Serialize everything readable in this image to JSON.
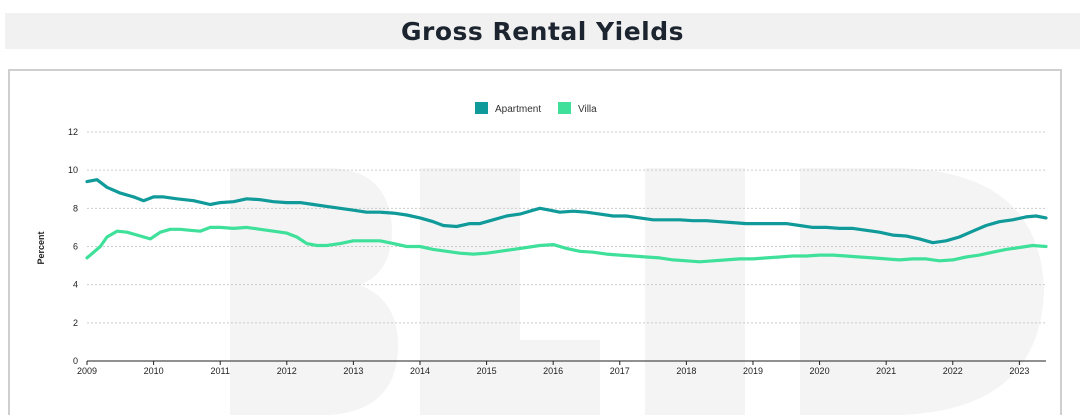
{
  "page": {
    "title": "Gross Rental Yields"
  },
  "colors": {
    "apartment": "#119a9a",
    "villa": "#3fe09a",
    "grid": "#cccccc",
    "axis": "#222222",
    "watermark": "#f4f4f4"
  },
  "chart_data": {
    "type": "line",
    "title": "",
    "xlabel": "",
    "ylabel": "Percent",
    "xlim": [
      2009,
      2023.4
    ],
    "ylim": [
      0,
      12
    ],
    "yticks": [
      0,
      2,
      4,
      6,
      8,
      10,
      12
    ],
    "xticks": [
      2009,
      2010,
      2011,
      2012,
      2013,
      2014,
      2015,
      2016,
      2017,
      2018,
      2019,
      2020,
      2021,
      2022,
      2023
    ],
    "grid": true,
    "legend": "top-center",
    "series": [
      {
        "name": "Apartment",
        "color": "#119a9a",
        "x": [
          2009.0,
          2009.15,
          2009.3,
          2009.5,
          2009.7,
          2009.85,
          2010.0,
          2010.15,
          2010.35,
          2010.6,
          2010.85,
          2011.0,
          2011.2,
          2011.4,
          2011.6,
          2011.8,
          2012.0,
          2012.2,
          2012.4,
          2012.6,
          2012.8,
          2013.0,
          2013.2,
          2013.4,
          2013.6,
          2013.8,
          2014.0,
          2014.2,
          2014.35,
          2014.55,
          2014.75,
          2014.9,
          2015.1,
          2015.3,
          2015.5,
          2015.7,
          2015.8,
          2015.95,
          2016.1,
          2016.3,
          2016.5,
          2016.7,
          2016.9,
          2017.1,
          2017.3,
          2017.5,
          2017.7,
          2017.9,
          2018.1,
          2018.3,
          2018.5,
          2018.7,
          2018.9,
          2019.1,
          2019.3,
          2019.5,
          2019.7,
          2019.9,
          2020.1,
          2020.3,
          2020.5,
          2020.7,
          2020.9,
          2021.1,
          2021.3,
          2021.5,
          2021.7,
          2021.9,
          2022.1,
          2022.3,
          2022.5,
          2022.7,
          2022.9,
          2023.1,
          2023.25,
          2023.4
        ],
        "values": [
          9.4,
          9.5,
          9.1,
          8.8,
          8.6,
          8.4,
          8.6,
          8.6,
          8.5,
          8.4,
          8.2,
          8.3,
          8.35,
          8.5,
          8.45,
          8.35,
          8.3,
          8.3,
          8.2,
          8.1,
          8.0,
          7.9,
          7.8,
          7.8,
          7.75,
          7.65,
          7.5,
          7.3,
          7.1,
          7.05,
          7.2,
          7.2,
          7.4,
          7.6,
          7.7,
          7.9,
          8.0,
          7.9,
          7.8,
          7.85,
          7.8,
          7.7,
          7.6,
          7.6,
          7.5,
          7.4,
          7.4,
          7.4,
          7.35,
          7.35,
          7.3,
          7.25,
          7.2,
          7.2,
          7.2,
          7.2,
          7.1,
          7.0,
          7.0,
          6.95,
          6.95,
          6.85,
          6.75,
          6.6,
          6.55,
          6.4,
          6.2,
          6.3,
          6.5,
          6.8,
          7.1,
          7.3,
          7.4,
          7.55,
          7.6,
          7.5
        ]
      },
      {
        "name": "Villa",
        "color": "#3fe09a",
        "x": [
          2009.0,
          2009.1,
          2009.2,
          2009.3,
          2009.45,
          2009.6,
          2009.8,
          2009.95,
          2010.1,
          2010.25,
          2010.4,
          2010.55,
          2010.7,
          2010.85,
          2011.0,
          2011.2,
          2011.4,
          2011.6,
          2011.8,
          2012.0,
          2012.15,
          2012.3,
          2012.45,
          2012.6,
          2012.8,
          2013.0,
          2013.2,
          2013.4,
          2013.6,
          2013.8,
          2014.0,
          2014.2,
          2014.4,
          2014.6,
          2014.8,
          2015.0,
          2015.2,
          2015.4,
          2015.6,
          2015.8,
          2016.0,
          2016.2,
          2016.4,
          2016.6,
          2016.8,
          2017.0,
          2017.2,
          2017.4,
          2017.6,
          2017.8,
          2018.0,
          2018.2,
          2018.4,
          2018.6,
          2018.8,
          2019.0,
          2019.2,
          2019.4,
          2019.6,
          2019.8,
          2020.0,
          2020.2,
          2020.4,
          2020.6,
          2020.8,
          2021.0,
          2021.2,
          2021.4,
          2021.6,
          2021.8,
          2022.0,
          2022.2,
          2022.4,
          2022.6,
          2022.8,
          2023.0,
          2023.2,
          2023.4
        ],
        "values": [
          5.4,
          5.7,
          6.0,
          6.5,
          6.8,
          6.75,
          6.55,
          6.4,
          6.75,
          6.9,
          6.9,
          6.85,
          6.8,
          7.0,
          7.0,
          6.95,
          7.0,
          6.9,
          6.8,
          6.7,
          6.5,
          6.15,
          6.05,
          6.05,
          6.15,
          6.3,
          6.3,
          6.3,
          6.15,
          6.0,
          6.0,
          5.85,
          5.75,
          5.65,
          5.6,
          5.65,
          5.75,
          5.85,
          5.95,
          6.05,
          6.1,
          5.9,
          5.75,
          5.7,
          5.6,
          5.55,
          5.5,
          5.45,
          5.4,
          5.3,
          5.25,
          5.2,
          5.25,
          5.3,
          5.35,
          5.35,
          5.4,
          5.45,
          5.5,
          5.5,
          5.55,
          5.55,
          5.5,
          5.45,
          5.4,
          5.35,
          5.3,
          5.35,
          5.35,
          5.25,
          5.3,
          5.45,
          5.55,
          5.7,
          5.85,
          5.95,
          6.05,
          6.0
        ]
      }
    ]
  }
}
